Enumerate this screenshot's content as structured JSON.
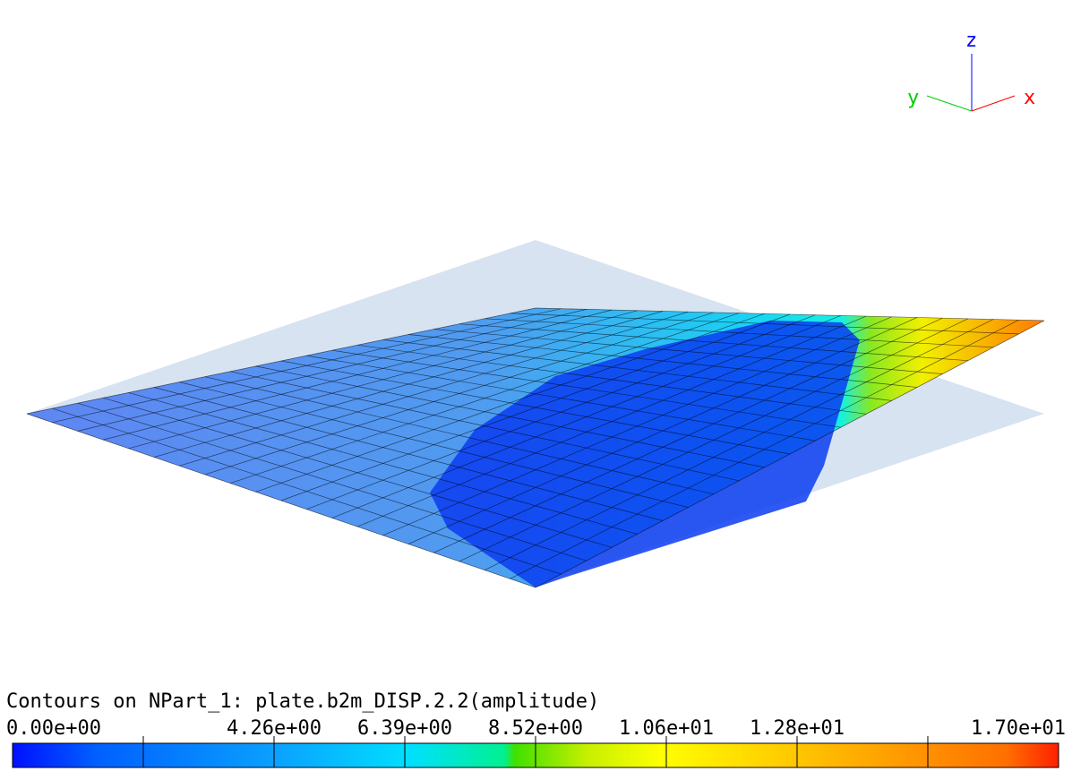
{
  "triad": {
    "x": "x",
    "y": "y",
    "z": "z"
  },
  "legend": {
    "title": "Contours on NPart_1: plate.b2m_DISP.2.2(amplitude)",
    "labels": [
      "0.00e+00",
      "4.26e+00",
      "6.39e+00",
      "8.52e+00",
      "1.06e+01",
      "1.28e+01",
      "1.70e+01"
    ]
  }
}
